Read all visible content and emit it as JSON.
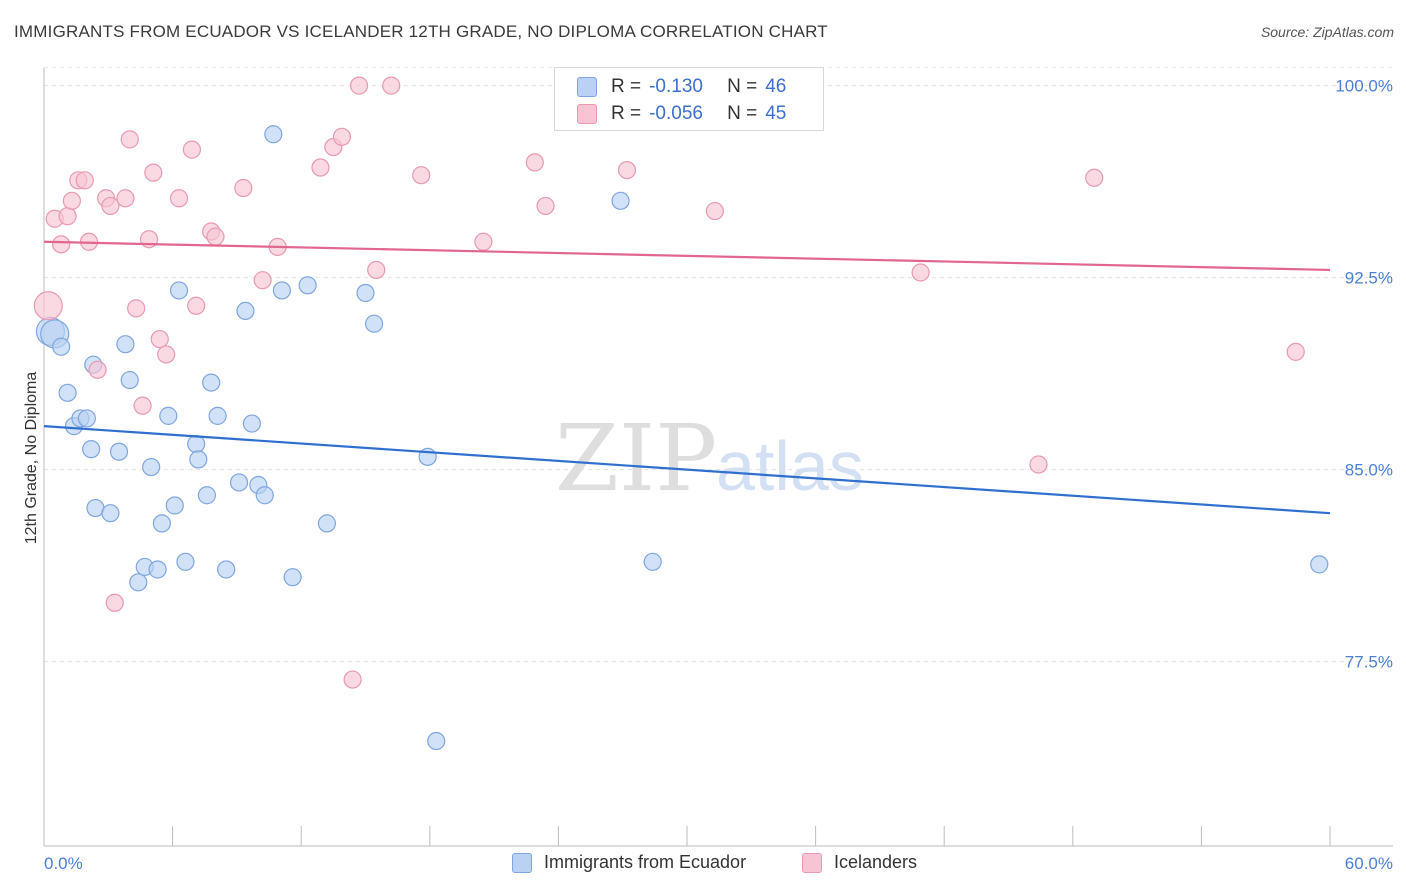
{
  "header": {
    "title": "IMMIGRANTS FROM ECUADOR VS ICELANDER 12TH GRADE, NO DIPLOMA CORRELATION CHART",
    "source": "Source: ZipAtlas.com"
  },
  "watermark": {
    "part1": "ZIP",
    "part2": "atlas"
  },
  "legend_top": {
    "rows": [
      {
        "r_label": "R =",
        "r_value": "-0.130",
        "n_label": "N =",
        "n_value": "46"
      },
      {
        "r_label": "R =",
        "r_value": "-0.056",
        "n_label": "N =",
        "n_value": "45"
      }
    ]
  },
  "legend_bottom": {
    "items": [
      "Immigrants from Ecuador",
      "Icelanders"
    ]
  },
  "colors": {
    "blue_fill": "#b9d1f2",
    "blue_stroke": "#7fa6e0",
    "blue_line": "#2f6fd0",
    "pink_fill": "#f7c4d4",
    "pink_stroke": "#e999b2",
    "pink_line": "#e2668e",
    "axis_text": "#4a7fd6"
  },
  "chart_data": {
    "type": "scatter",
    "title": "IMMIGRANTS FROM ECUADOR VS ICELANDER 12TH GRADE, NO DIPLOMA CORRELATION CHART",
    "xlabel": "",
    "ylabel": "12th Grade, No Diploma",
    "xlim": [
      0,
      60
    ],
    "ylim": [
      70.3,
      101.0
    ],
    "x_tick_labels": [
      "0.0%",
      "60.0%"
    ],
    "y_ticks": [
      77.5,
      85.0,
      92.5,
      100.0
    ],
    "y_tick_labels": [
      "77.5%",
      "85.0%",
      "92.5%",
      "100.0%"
    ],
    "grid": true,
    "legend_position": "top-center",
    "series": [
      {
        "name": "Immigrants from Ecuador",
        "color": "#7fa6e0",
        "trend": {
          "x": [
            0,
            60
          ],
          "y": [
            86.7,
            83.3
          ]
        },
        "points": [
          [
            0.3,
            90.4
          ],
          [
            0.5,
            90.3
          ],
          [
            0.8,
            89.8
          ],
          [
            1.1,
            88.0
          ],
          [
            1.4,
            86.7
          ],
          [
            1.7,
            87.0
          ],
          [
            2.0,
            87.0
          ],
          [
            2.2,
            85.8
          ],
          [
            2.4,
            83.5
          ],
          [
            3.1,
            83.3
          ],
          [
            3.5,
            85.7
          ],
          [
            2.3,
            89.1
          ],
          [
            3.8,
            89.9
          ],
          [
            4.0,
            88.5
          ],
          [
            4.4,
            80.6
          ],
          [
            4.7,
            81.2
          ],
          [
            5.0,
            85.1
          ],
          [
            5.3,
            81.1
          ],
          [
            5.5,
            82.9
          ],
          [
            5.8,
            87.1
          ],
          [
            6.1,
            83.6
          ],
          [
            6.3,
            92.0
          ],
          [
            6.6,
            81.4
          ],
          [
            7.1,
            86.0
          ],
          [
            7.2,
            85.4
          ],
          [
            7.6,
            84.0
          ],
          [
            7.8,
            88.4
          ],
          [
            8.1,
            87.1
          ],
          [
            8.5,
            81.1
          ],
          [
            9.1,
            84.5
          ],
          [
            9.4,
            91.2
          ],
          [
            9.7,
            86.8
          ],
          [
            10.0,
            84.4
          ],
          [
            10.3,
            84.0
          ],
          [
            10.7,
            98.1
          ],
          [
            11.1,
            92.0
          ],
          [
            11.6,
            80.8
          ],
          [
            12.3,
            92.2
          ],
          [
            13.2,
            82.9
          ],
          [
            15.0,
            91.9
          ],
          [
            15.4,
            90.7
          ],
          [
            17.9,
            85.5
          ],
          [
            18.3,
            74.4
          ],
          [
            26.9,
            95.5
          ],
          [
            28.4,
            81.4
          ],
          [
            59.5,
            81.3
          ]
        ]
      },
      {
        "name": "Icelanders",
        "color": "#e999b2",
        "trend": {
          "x": [
            0,
            60
          ],
          "y": [
            93.9,
            92.8
          ]
        },
        "points": [
          [
            0.2,
            91.4
          ],
          [
            0.5,
            94.8
          ],
          [
            0.8,
            93.8
          ],
          [
            1.1,
            94.9
          ],
          [
            1.3,
            95.5
          ],
          [
            1.6,
            96.3
          ],
          [
            1.9,
            96.3
          ],
          [
            2.1,
            93.9
          ],
          [
            2.5,
            88.9
          ],
          [
            2.9,
            95.6
          ],
          [
            3.1,
            95.3
          ],
          [
            3.8,
            95.6
          ],
          [
            4.0,
            97.9
          ],
          [
            4.3,
            91.3
          ],
          [
            4.6,
            87.5
          ],
          [
            4.9,
            94.0
          ],
          [
            5.1,
            96.6
          ],
          [
            5.4,
            90.1
          ],
          [
            5.7,
            89.5
          ],
          [
            6.3,
            95.6
          ],
          [
            6.9,
            97.5
          ],
          [
            7.1,
            91.4
          ],
          [
            7.8,
            94.3
          ],
          [
            8.0,
            94.1
          ],
          [
            9.3,
            96.0
          ],
          [
            10.2,
            92.4
          ],
          [
            10.9,
            93.7
          ],
          [
            12.9,
            96.8
          ],
          [
            13.5,
            97.6
          ],
          [
            13.9,
            98.0
          ],
          [
            14.7,
            100.0
          ],
          [
            14.4,
            76.8
          ],
          [
            15.5,
            92.8
          ],
          [
            16.2,
            100.0
          ],
          [
            17.6,
            96.5
          ],
          [
            20.5,
            93.9
          ],
          [
            22.9,
            97.0
          ],
          [
            23.4,
            95.3
          ],
          [
            27.2,
            96.7
          ],
          [
            31.3,
            95.1
          ],
          [
            40.9,
            92.7
          ],
          [
            46.4,
            85.2
          ],
          [
            49.0,
            96.4
          ],
          [
            58.4,
            89.6
          ],
          [
            3.3,
            79.8
          ]
        ]
      }
    ]
  }
}
